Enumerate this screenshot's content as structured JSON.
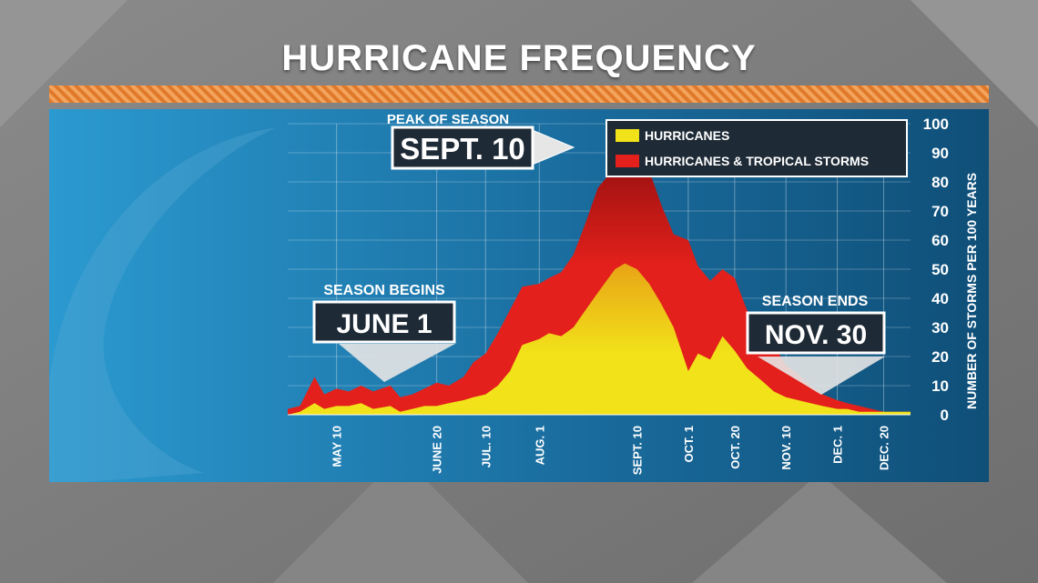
{
  "title": "HURRICANE FREQUENCY",
  "annotations": {
    "peak_caption": "PEAK OF SEASON",
    "peak_date": "SEPT. 10",
    "begins_caption": "SEASON BEGINS",
    "begins_date": "JUNE 1",
    "ends_caption": "SEASON ENDS",
    "ends_date": "NOV. 30"
  },
  "legend": {
    "hurricanes": "HURRICANES",
    "all_storms": "HURRICANES & TROPICAL STORMS"
  },
  "colors": {
    "hurricanes": "#f2e21a",
    "hurricanes_dark": "#e8a416",
    "all_storms": "#e3201b",
    "all_storms_dark": "#8f0f0f",
    "panel": "#1c7fb8",
    "stripe": "#e8893a"
  },
  "chart_data": {
    "type": "area",
    "title": "HURRICANE FREQUENCY",
    "ylabel": "NUMBER OF STORMS PER 100 YEARS",
    "xlabel": "",
    "ylim": [
      0,
      100
    ],
    "yticks": [
      0,
      10,
      20,
      30,
      40,
      50,
      60,
      70,
      80,
      90,
      100
    ],
    "xtick_labels": [
      "MAY 10",
      "JUNE 20",
      "JUL. 10",
      "AUG. 1",
      "SEPT. 10",
      "OCT. 1",
      "OCT. 20",
      "NOV. 10",
      "DEC. 1",
      "DEC. 20"
    ],
    "grid": true,
    "legend_position": "top-right",
    "series": [
      {
        "name": "HURRICANES & TROPICAL STORMS",
        "x": [
          "Apr 20",
          "Apr 25",
          "May 1",
          "May 5",
          "May 10",
          "May 15",
          "May 20",
          "May 25",
          "Jun 1",
          "Jun 5",
          "Jun 10",
          "Jun 15",
          "Jun 20",
          "Jun 25",
          "Jul 1",
          "Jul 5",
          "Jul 10",
          "Jul 15",
          "Jul 20",
          "Jul 25",
          "Aug 1",
          "Aug 5",
          "Aug 10",
          "Aug 15",
          "Aug 20",
          "Aug 25",
          "Sep 1",
          "Sep 5",
          "Sep 10",
          "Sep 15",
          "Sep 20",
          "Sep 25",
          "Oct 1",
          "Oct 5",
          "Oct 10",
          "Oct 15",
          "Oct 20",
          "Oct 25",
          "Nov 1",
          "Nov 5",
          "Nov 10",
          "Nov 15",
          "Nov 20",
          "Nov 25",
          "Dec 1",
          "Dec 5",
          "Dec 10",
          "Dec 15",
          "Dec 20",
          "Dec 25",
          "Dec 31"
        ],
        "values": [
          2,
          3,
          13,
          7,
          9,
          8,
          10,
          8,
          10,
          6,
          7,
          9,
          11,
          10,
          13,
          18,
          21,
          28,
          36,
          44,
          45,
          47,
          49,
          55,
          66,
          78,
          85,
          93,
          91,
          84,
          72,
          62,
          60,
          51,
          46,
          50,
          47,
          36,
          28,
          24,
          17,
          14,
          10,
          7,
          5,
          4,
          3,
          2,
          1,
          1,
          1
        ]
      },
      {
        "name": "HURRICANES",
        "x": [
          "Apr 20",
          "Apr 25",
          "May 1",
          "May 5",
          "May 10",
          "May 15",
          "May 20",
          "May 25",
          "Jun 1",
          "Jun 5",
          "Jun 10",
          "Jun 15",
          "Jun 20",
          "Jun 25",
          "Jul 1",
          "Jul 5",
          "Jul 10",
          "Jul 15",
          "Jul 20",
          "Jul 25",
          "Aug 1",
          "Aug 5",
          "Aug 10",
          "Aug 15",
          "Aug 20",
          "Aug 25",
          "Sep 1",
          "Sep 5",
          "Sep 10",
          "Sep 15",
          "Sep 20",
          "Sep 25",
          "Oct 1",
          "Oct 5",
          "Oct 10",
          "Oct 15",
          "Oct 20",
          "Oct 25",
          "Nov 1",
          "Nov 5",
          "Nov 10",
          "Nov 15",
          "Nov 20",
          "Nov 25",
          "Dec 1",
          "Dec 5",
          "Dec 10",
          "Dec 15",
          "Dec 20",
          "Dec 25",
          "Dec 31"
        ],
        "values": [
          0,
          1,
          4,
          2,
          3,
          3,
          4,
          2,
          3,
          1,
          2,
          3,
          3,
          4,
          5,
          6,
          7,
          10,
          15,
          24,
          26,
          28,
          27,
          30,
          36,
          42,
          50,
          52,
          50,
          45,
          38,
          30,
          15,
          21,
          19,
          27,
          22,
          16,
          11,
          8,
          6,
          5,
          4,
          3,
          2,
          2,
          1,
          1,
          1,
          1,
          1
        ]
      }
    ]
  }
}
